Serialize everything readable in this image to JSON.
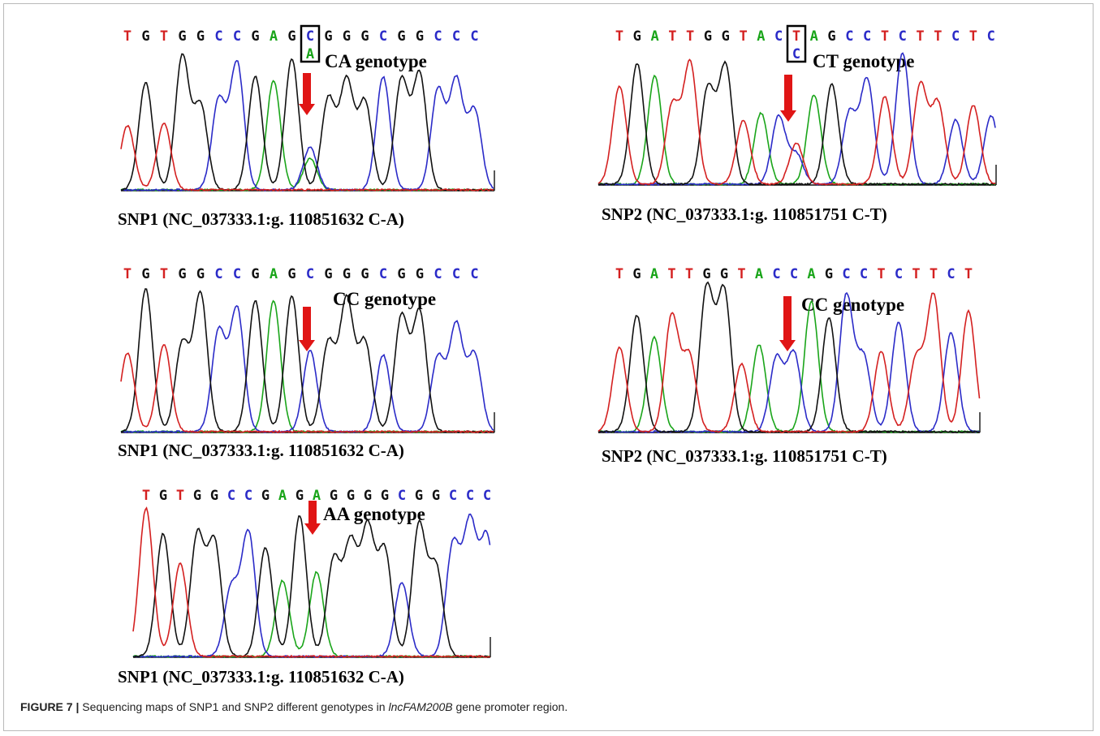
{
  "colors": {
    "A": "#1aa51a",
    "C": "#2b2bc8",
    "G": "#111111",
    "T": "#d42020",
    "arrow": "#e01515"
  },
  "panels": [
    {
      "id": "snp1-ca",
      "sequence": "TGTGGCCGAGCGGGCGGCCC",
      "secondary_base": "A",
      "boxed_index": 10,
      "genotype": "CA genotype",
      "label": "SNP1 (NC_037333.1:g. 110851632 C-A)"
    },
    {
      "id": "snp2-ct",
      "sequence": "TGATTGGTACTAGCCTCTTCTC",
      "secondary_base": "C",
      "boxed_index": 10,
      "genotype": "CT genotype",
      "label": "SNP2 (NC_037333.1:g. 110851751 C-T)"
    },
    {
      "id": "snp1-cc",
      "sequence": "TGTGGCCGAGCGGGCGGCCC",
      "genotype": "CC genotype",
      "label": "SNP1 (NC_037333.1:g. 110851632 C-A)"
    },
    {
      "id": "snp2-cc",
      "sequence": "TGATTGGTACCAGCCTCTTCT",
      "genotype": "CC genotype",
      "label": "SNP2 (NC_037333.1:g. 110851751 C-T)"
    },
    {
      "id": "snp1-aa",
      "sequence": "TGTGGCCGAGAGGGGCGGCCC",
      "genotype": "AA genotype",
      "label": "SNP1 (NC_037333.1:g. 110851632 C-A)"
    }
  ],
  "caption": {
    "label": "FIGURE 7 |",
    "text_before": "Sequencing maps of SNP1 and SNP2 different genotypes in",
    "gene": "lncFAM200B",
    "text_after": "gene promoter region."
  }
}
